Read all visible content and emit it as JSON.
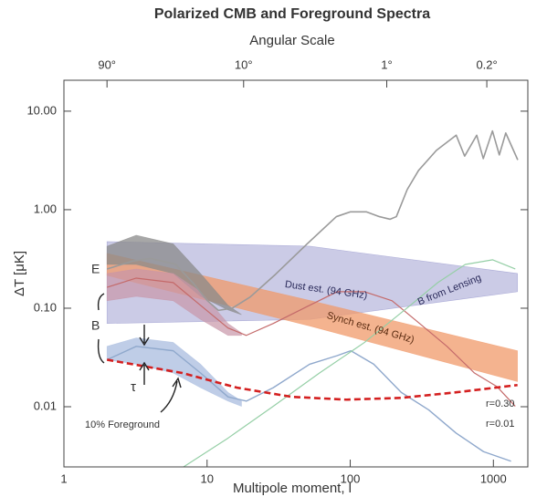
{
  "chart_data": {
    "type": "line",
    "title": "Polarized CMB and Foreground Spectra",
    "x2label": "Angular Scale",
    "xlabel": "Multipole moment, l",
    "ylabel": "ΔT [μK]",
    "xlog": true,
    "ylog": true,
    "x2log": true,
    "xlim": [
      1,
      1740
    ],
    "ylim": [
      0.00245,
      20.6
    ],
    "x2lim": [
      180,
      0.1034
    ],
    "xticks": [
      1,
      10,
      100,
      1000
    ],
    "yticks": [
      {
        "value": 10,
        "label": "10.00"
      },
      {
        "value": 1,
        "label": "1.00"
      },
      {
        "value": 0.1,
        "label": "0.10"
      },
      {
        "value": 0.01,
        "label": "0.01"
      }
    ],
    "x2ticks": [
      {
        "value": 90,
        "label": "90°"
      },
      {
        "value": 10,
        "label": "10°"
      },
      {
        "value": 1,
        "label": "1°"
      },
      {
        "value": 0.2,
        "label": "0.2°"
      }
    ],
    "bands": [
      {
        "color": "#8c8cc8",
        "opacity": 0.45,
        "x": [
          2,
          52,
          1474
        ],
        "upper": [
          0.474,
          0.426,
          0.225
        ],
        "lower": [
          0.07,
          0.077,
          0.147
        ]
      },
      {
        "color": "#f09a6a",
        "opacity": 0.75,
        "x": [
          2,
          52,
          1474
        ],
        "upper": [
          0.36,
          0.12,
          0.037
        ],
        "lower": [
          0.215,
          0.066,
          0.018
        ]
      },
      {
        "color": "#8a8a8a",
        "opacity": 0.75,
        "x": [
          2,
          3.2,
          5.8,
          9,
          14,
          17.4
        ],
        "upper": [
          0.426,
          0.55,
          0.45,
          0.225,
          0.107,
          0.086
        ],
        "lower": [
          0.278,
          0.278,
          0.225,
          0.132,
          0.096,
          0.086
        ]
      },
      {
        "color": "#c896a8",
        "opacity": 0.7,
        "x": [
          2,
          3.2,
          5.8,
          9,
          14,
          17.4
        ],
        "upper": [
          0.225,
          0.25,
          0.225,
          0.147,
          0.07,
          0.056
        ],
        "lower": [
          0.119,
          0.132,
          0.119,
          0.077,
          0.053,
          0.053
        ]
      },
      {
        "color": "#a9bcdf",
        "opacity": 0.75,
        "x": [
          2,
          3.2,
          5.8,
          9,
          14,
          17.4
        ],
        "upper": [
          0.041,
          0.05,
          0.045,
          0.027,
          0.014,
          0.0114
        ],
        "lower": [
          0.03,
          0.027,
          0.022,
          0.0156,
          0.0114,
          0.0101
        ]
      }
    ],
    "series": [
      {
        "color": "#9a9a9a",
        "width": 1.6,
        "x": [
          2,
          3,
          4,
          6,
          8,
          10,
          12,
          15,
          20,
          30,
          50,
          80,
          100,
          130,
          160,
          190,
          210,
          250,
          300,
          400,
          550,
          630,
          765,
          850,
          985,
          1100,
          1220,
          1480
        ],
        "values": [
          0.25,
          0.3,
          0.32,
          0.28,
          0.18,
          0.12,
          0.095,
          0.1,
          0.13,
          0.22,
          0.45,
          0.85,
          0.95,
          0.95,
          0.85,
          0.8,
          0.85,
          1.6,
          2.5,
          4.0,
          5.7,
          3.5,
          5.7,
          3.3,
          6.3,
          3.6,
          6.0,
          3.2
        ]
      },
      {
        "color": "#c46a6a",
        "width": 1.2,
        "x": [
          2,
          3.2,
          5.8,
          9,
          14,
          18.8,
          29,
          52,
          81,
          126,
          196,
          305,
          474,
          737,
          1060,
          1422
        ],
        "values": [
          0.163,
          0.202,
          0.182,
          0.107,
          0.063,
          0.053,
          0.07,
          0.107,
          0.147,
          0.147,
          0.119,
          0.07,
          0.041,
          0.022,
          0.016,
          0.0101
        ]
      },
      {
        "color": "#8fa8cc",
        "width": 1.4,
        "x": [
          2,
          3.2,
          5.8,
          9,
          14,
          18.8,
          29,
          52,
          81,
          101,
          146,
          227,
          353,
          549,
          853,
          1328
        ],
        "values": [
          0.03,
          0.041,
          0.037,
          0.022,
          0.0126,
          0.0114,
          0.0156,
          0.027,
          0.033,
          0.037,
          0.027,
          0.014,
          0.0093,
          0.0054,
          0.0035,
          0.0028
        ]
      },
      {
        "color": "#95cfa6",
        "width": 1.2,
        "x": [
          6.7,
          14,
          29,
          61,
          126,
          263,
          409,
          636,
          989,
          1422
        ],
        "values": [
          0.0024,
          0.0048,
          0.0101,
          0.022,
          0.045,
          0.107,
          0.182,
          0.278,
          0.31,
          0.25
        ]
      },
      {
        "color": "#d42020",
        "width": 2.6,
        "dashed": true,
        "x": [
          2,
          6.7,
          16.2,
          39,
          94,
          227,
          549,
          1474
        ],
        "values": [
          0.03,
          0.022,
          0.0156,
          0.0126,
          0.0118,
          0.0123,
          0.014,
          0.0166
        ]
      }
    ],
    "annotations": [
      "E",
      "B",
      "τ",
      "10% Foreground",
      "Dust est. (94 GHz)",
      "Synch est. (94 GHz)",
      "B from Lensing",
      "r=0.30",
      "r=0.01"
    ]
  }
}
